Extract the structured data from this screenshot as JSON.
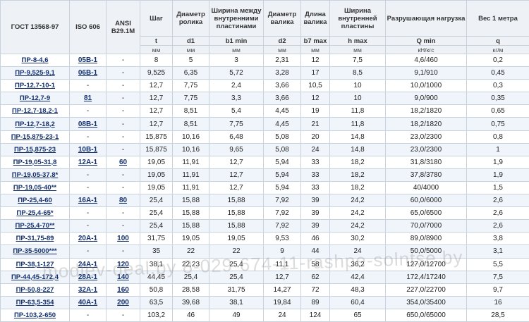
{
  "headers": {
    "gost": "ГОСТ 13568-97",
    "iso": "ISO 606",
    "ansi": "ANSI B29.1M",
    "pitch": "Шаг",
    "roller_d": "Диаметр ролика",
    "inner_width": "Ширина между внутренними пластинами",
    "pin_d": "Диаметр валика",
    "pin_len": "Длина валика",
    "plate_width": "Ширина внутренней пластины",
    "load": "Разрушающая нагрузка",
    "weight": "Вес 1 метра"
  },
  "symbols": [
    "t",
    "d1",
    "b1 min",
    "d2",
    "b7 max",
    "h max",
    "Q min",
    "q"
  ],
  "units": [
    "мм",
    "мм",
    "мм",
    "мм",
    "мм",
    "мм",
    "кН/кгс",
    "кг/м"
  ],
  "rows": [
    [
      "ПР-8-4,6",
      "05В-1",
      "-",
      "8",
      "5",
      "3",
      "2,31",
      "12",
      "7,5",
      "4,6/460",
      "0,2"
    ],
    [
      "ПР-9,525-9,1",
      "06В-1",
      "-",
      "9,525",
      "6,35",
      "5,72",
      "3,28",
      "17",
      "8,5",
      "9,1/910",
      "0,45"
    ],
    [
      "ПР-12,7-10-1",
      "-",
      "-",
      "12,7",
      "7,75",
      "2,4",
      "3,66",
      "10,5",
      "10",
      "10,0/1000",
      "0,3"
    ],
    [
      "ПР-12,7-9",
      "81",
      "-",
      "12,7",
      "7,75",
      "3,3",
      "3,66",
      "12",
      "10",
      "9,0/900",
      "0,35"
    ],
    [
      "ПР-12,7-18,2-1",
      "-",
      "-",
      "12,7",
      "8,51",
      "5,4",
      "4,45",
      "19",
      "11,8",
      "18,2/1820",
      "0,65"
    ],
    [
      "ПР-12,7-18,2",
      "08В-1",
      "-",
      "12,7",
      "8,51",
      "7,75",
      "4,45",
      "21",
      "11,8",
      "18,2/1820",
      "0,75"
    ],
    [
      "ПР-15,875-23-1",
      "-",
      "-",
      "15,875",
      "10,16",
      "6,48",
      "5,08",
      "20",
      "14,8",
      "23,0/2300",
      "0,8"
    ],
    [
      "ПР-15,875-23",
      "10В-1",
      "-",
      "15,875",
      "10,16",
      "9,65",
      "5,08",
      "24",
      "14,8",
      "23,0/2300",
      "1"
    ],
    [
      "ПР-19,05-31,8",
      "12А-1",
      "60",
      "19,05",
      "11,91",
      "12,7",
      "5,94",
      "33",
      "18,2",
      "31,8/3180",
      "1,9"
    ],
    [
      "ПР-19,05-37,8*",
      "-",
      "-",
      "19,05",
      "11,91",
      "12,7",
      "5,94",
      "33",
      "18,2",
      "37,8/3780",
      "1,9"
    ],
    [
      "ПР-19,05-40**",
      "-",
      "-",
      "19,05",
      "11,91",
      "12,7",
      "5,94",
      "33",
      "18,2",
      "40/4000",
      "1,5"
    ],
    [
      "ПР-25,4-60",
      "16А-1",
      "80",
      "25,4",
      "15,88",
      "15,88",
      "7,92",
      "39",
      "24,2",
      "60,0/6000",
      "2,6"
    ],
    [
      "ПР-25,4-65*",
      "-",
      "-",
      "25,4",
      "15,88",
      "15,88",
      "7,92",
      "39",
      "24,2",
      "65,0/6500",
      "2,6"
    ],
    [
      "ПР-25,4-70**",
      "-",
      "-",
      "25,4",
      "15,88",
      "15,88",
      "7,92",
      "39",
      "24,2",
      "70,0/7000",
      "2,6"
    ],
    [
      "ПР-31,75-89",
      "20А-1",
      "100",
      "31,75",
      "19,05",
      "19,05",
      "9,53",
      "46",
      "30,2",
      "89,0/8900",
      "3,8"
    ],
    [
      "ПР-35-5000***",
      "-",
      "-",
      "35",
      "22",
      "22",
      "9",
      "44",
      "24",
      "50,0/5000",
      "3,1"
    ],
    [
      "ПР-38,1-127",
      "24А-1",
      "120",
      "38,1",
      "22,23",
      "25,4",
      "11,1",
      "58",
      "36,2",
      "127,0/12700",
      "5,5"
    ],
    [
      "ПР-44,45-172,4",
      "28А-1",
      "140",
      "44,45",
      "25,4",
      "25,4",
      "12,7",
      "62",
      "42,4",
      "172,4/17240",
      "7,5"
    ],
    [
      "ПР-50,8-227",
      "32А-1",
      "160",
      "50,8",
      "28,58",
      "31,75",
      "14,27",
      "72",
      "48,3",
      "227,0/22700",
      "9,7"
    ],
    [
      "ПР-63,5-354",
      "40А-1",
      "200",
      "63,5",
      "39,68",
      "38,1",
      "19,84",
      "89",
      "60,4",
      "354,0/35400",
      "16"
    ],
    [
      "ПР-103,2-650",
      "-",
      "-",
      "103,2",
      "46",
      "49",
      "24",
      "124",
      "65",
      "650,0/65000",
      "28,5"
    ]
  ],
  "watermark": "modlev-deal.by 8-029-674-11-rashpe-solntse.by"
}
